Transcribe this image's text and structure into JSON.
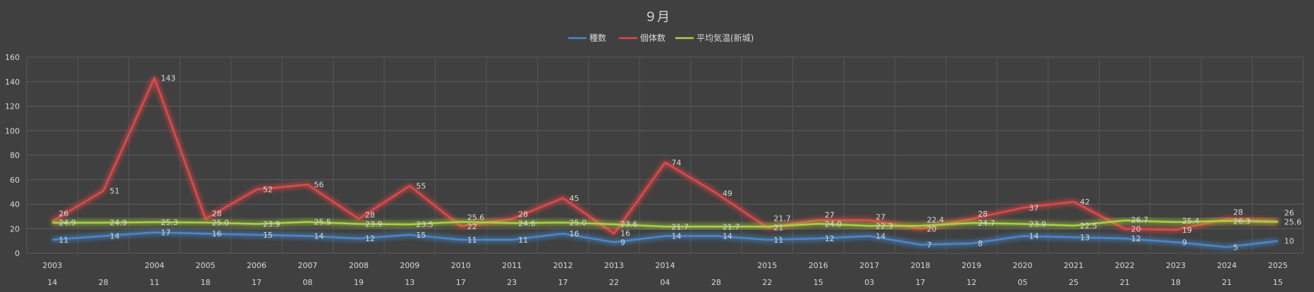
{
  "chart_data": {
    "type": "line",
    "title": "９月",
    "ylim": [
      0,
      160
    ],
    "yticks": [
      0,
      20,
      40,
      60,
      80,
      100,
      120,
      140,
      160
    ],
    "grid": true,
    "legend_position": "top",
    "categories_year": [
      "2003",
      "",
      "2004",
      "2005",
      "2006",
      "2007",
      "2008",
      "2009",
      "2010",
      "2011",
      "2012",
      "2013",
      "2014",
      "",
      "2015",
      "2016",
      "2017",
      "2018",
      "2019",
      "2020",
      "2021",
      "2022",
      "2023",
      "2024",
      "2025"
    ],
    "categories_day": [
      "14",
      "28",
      "11",
      "18",
      "17",
      "08",
      "19",
      "13",
      "17",
      "23",
      "17",
      "22",
      "04",
      "28",
      "22",
      "15",
      "03",
      "17",
      "12",
      "05",
      "25",
      "21",
      "18",
      "21",
      "15"
    ],
    "series": [
      {
        "name": "種数",
        "color": "#4a88cc",
        "decimals": 0,
        "values": [
          11,
          14,
          17,
          16,
          15,
          14,
          12,
          15,
          11,
          11,
          16,
          9,
          14,
          14,
          11,
          12,
          14,
          7,
          8,
          14,
          13,
          12,
          9,
          5,
          10
        ]
      },
      {
        "name": "個体数",
        "color": "#e0484a",
        "decimals": 0,
        "values": [
          26,
          51,
          143,
          28,
          52,
          56,
          28,
          55,
          22,
          28,
          45,
          16,
          74,
          49,
          21,
          27,
          27,
          20,
          28,
          37,
          42,
          20,
          19,
          28,
          26
        ]
      },
      {
        "name": "平均気温(新城)",
        "color": "#a9d144",
        "decimals": 1,
        "values": [
          24.9,
          24.9,
          25.3,
          25,
          23.9,
          25.5,
          23.9,
          23.5,
          25.6,
          24.6,
          25,
          23.6,
          21.7,
          21.7,
          21.7,
          24,
          22.3,
          22.4,
          24.7,
          23.9,
          22.5,
          26.7,
          25.4,
          26.3,
          25.6
        ]
      }
    ]
  }
}
